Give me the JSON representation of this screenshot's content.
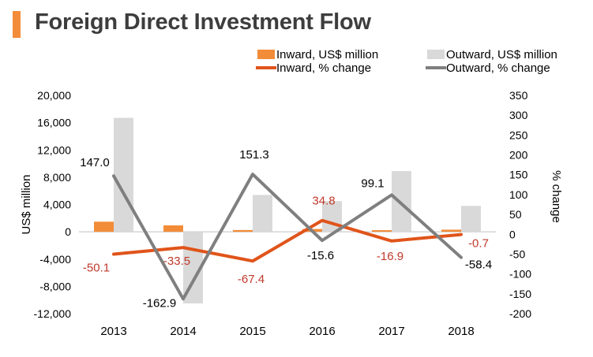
{
  "page_title": "Foreign Direct Investment Flow",
  "colors": {
    "title_bar": "#F28C38",
    "title_text": "#3d3d3d",
    "inward_bar": "#F28C38",
    "outward_bar": "#D9D9D9",
    "inward_line": "#E0541A",
    "outward_line": "#7F7F7F",
    "inward_label": "#C0392B",
    "text": "#000000",
    "axis": "#888888"
  },
  "chart_data": {
    "type": "bar+line",
    "title": "Foreign Direct Investment Flow",
    "categories": [
      "2013",
      "2014",
      "2015",
      "2016",
      "2017",
      "2018"
    ],
    "ylabel": "US$ million",
    "y2label": "% change",
    "ylim": [
      -12000,
      20000
    ],
    "y_ticks": [
      20000,
      16000,
      12000,
      8000,
      4000,
      0,
      -4000,
      -8000,
      -12000
    ],
    "y_tick_labels": [
      "20,000",
      "16,000",
      "12,000",
      "8,000",
      "4,000",
      "0",
      "-4,000",
      "-8,000",
      "-12,000"
    ],
    "y2lim": [
      -200,
      350
    ],
    "y2_ticks": [
      350,
      300,
      250,
      200,
      150,
      100,
      50,
      0,
      -50,
      -100,
      -150,
      -200
    ],
    "y2_tick_labels": [
      "350",
      "300",
      "250",
      "200",
      "150",
      "100",
      "50",
      "0",
      "-50",
      "-100",
      "-150",
      "-200"
    ],
    "legend_position": "top-right",
    "bar_series": [
      {
        "name": "Inward, US$ million",
        "values": [
          1480,
          940,
          260,
          410,
          240,
          310
        ]
      },
      {
        "name": "Outward, US$ million",
        "values": [
          16700,
          -10500,
          5400,
          4500,
          8900,
          3800
        ]
      }
    ],
    "line_series": [
      {
        "name": "Inward, % change",
        "values": [
          -50.1,
          -33.5,
          -67.4,
          34.8,
          -16.9,
          -0.7
        ],
        "labels": [
          "-50.1",
          "-33.5",
          "-67.4",
          "34.8",
          "-16.9",
          "-0.7"
        ]
      },
      {
        "name": "Outward, % change",
        "values": [
          147.0,
          -162.9,
          151.3,
          -15.6,
          99.1,
          -58.4
        ],
        "labels": [
          "147.0",
          "-162.9",
          "151.3",
          "-15.6",
          "99.1",
          "-58.4"
        ]
      }
    ]
  }
}
